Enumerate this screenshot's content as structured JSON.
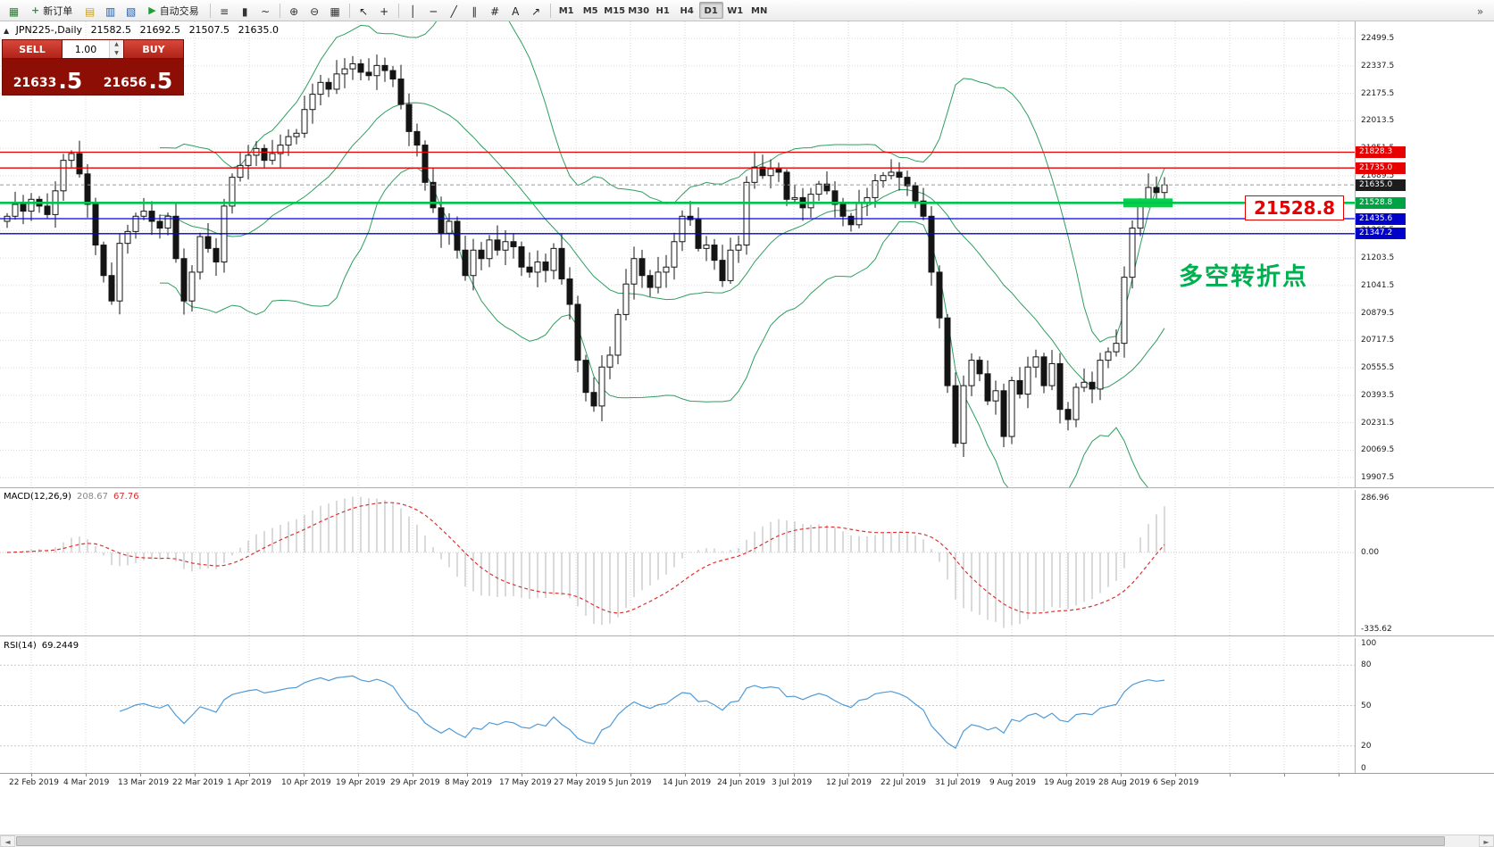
{
  "toolbar": {
    "active_timeframe": "D1",
    "items": [
      {
        "kind": "icon",
        "name": "new-chart-icon",
        "glyph": "▦",
        "color": "#2e7d32"
      },
      {
        "kind": "label-button",
        "name": "new-order-button",
        "glyph": "+",
        "glyph_color": "#1f9d3a",
        "label": "新订单"
      },
      {
        "kind": "icon",
        "name": "profiles-icon",
        "glyph": "▤",
        "color": "#c9a227"
      },
      {
        "kind": "icon",
        "name": "market-watch-icon",
        "glyph": "▥",
        "color": "#1e5aa8"
      },
      {
        "kind": "icon",
        "name": "data-window-icon",
        "glyph": "▧",
        "color": "#1e5aa8"
      },
      {
        "kind": "label-button",
        "name": "auto-trading-button",
        "glyph": "▶",
        "glyph_color": "#1f9d3a",
        "label": "自动交易"
      },
      {
        "kind": "sep"
      },
      {
        "kind": "icon",
        "name": "bar-chart-icon",
        "glyph": "≡",
        "color": "#333333"
      },
      {
        "kind": "icon",
        "name": "candlestick-icon",
        "glyph": "▮",
        "color": "#333333"
      },
      {
        "kind": "icon",
        "name": "line-chart-icon",
        "glyph": "~",
        "color": "#333333"
      },
      {
        "kind": "sep"
      },
      {
        "kind": "icon",
        "name": "zoom-in-icon",
        "glyph": "⊕",
        "color": "#333333"
      },
      {
        "kind": "icon",
        "name": "zoom-out-icon",
        "glyph": "⊖",
        "color": "#333333"
      },
      {
        "kind": "icon",
        "name": "tile-windows-icon",
        "glyph": "▦",
        "color": "#333333"
      },
      {
        "kind": "sep"
      },
      {
        "kind": "icon",
        "name": "cursor-icon",
        "glyph": "↖",
        "color": "#222222"
      },
      {
        "kind": "icon",
        "name": "crosshair-icon",
        "glyph": "+",
        "color": "#222222"
      },
      {
        "kind": "sep"
      },
      {
        "kind": "icon",
        "name": "vertical-line-icon",
        "glyph": "│",
        "color": "#222222"
      },
      {
        "kind": "icon",
        "name": "horizontal-line-icon",
        "glyph": "─",
        "color": "#222222"
      },
      {
        "kind": "icon",
        "name": "trendline-icon",
        "glyph": "╱",
        "color": "#222222"
      },
      {
        "kind": "icon",
        "name": "channel-icon",
        "glyph": "∥",
        "color": "#222222"
      },
      {
        "kind": "icon",
        "name": "fibonacci-icon",
        "glyph": "#",
        "color": "#222222"
      },
      {
        "kind": "icon",
        "name": "text-icon",
        "glyph": "A",
        "color": "#222222"
      },
      {
        "kind": "icon",
        "name": "arrows-icon",
        "glyph": "↗",
        "color": "#222222"
      },
      {
        "kind": "sep"
      },
      {
        "kind": "tf",
        "label": "M1"
      },
      {
        "kind": "tf",
        "label": "M5"
      },
      {
        "kind": "tf",
        "label": "M15"
      },
      {
        "kind": "tf",
        "label": "M30"
      },
      {
        "kind": "tf",
        "label": "H1"
      },
      {
        "kind": "tf",
        "label": "H4"
      },
      {
        "kind": "tf",
        "label": "D1"
      },
      {
        "kind": "tf",
        "label": "W1"
      },
      {
        "kind": "tf",
        "label": "MN"
      },
      {
        "kind": "icon",
        "name": "toolbar-overflow-icon",
        "glyph": "»",
        "color": "#555555",
        "right": true
      }
    ]
  },
  "trade_panel": {
    "sell_label": "SELL",
    "buy_label": "BUY",
    "volume": "1.00",
    "sell_price_base": "21633",
    "sell_price_pip": ".5",
    "buy_price_base": "21656",
    "buy_price_pip": ".5"
  },
  "chart": {
    "panel_toggle_glyph": "▲",
    "symbol": "JPN225-,Daily",
    "open": "21582.5",
    "high": "21692.5",
    "low": "21507.5",
    "close": "21635.0",
    "annotation_price": "21528.8",
    "annotation_note": "多空转折点",
    "axis": {
      "base": 19907.5,
      "step": 162.0,
      "count": 17
    },
    "levels": [
      {
        "price": 21828.3,
        "label": "21828.3",
        "line": "#e60000",
        "badge": "#e60000",
        "style": "solid",
        "width": 1.3
      },
      {
        "price": 21735.0,
        "label": "21735.0",
        "line": "#e60000",
        "badge": "#e60000",
        "style": "solid",
        "width": 1.3
      },
      {
        "price": 21635.0,
        "label": "21635.0",
        "line": "#9a9a9a",
        "badge": "#1c1c1c",
        "style": "dashed",
        "width": 1
      },
      {
        "price": 21528.8,
        "label": "21528.8",
        "line": "#00c44e",
        "badge": "#00a344",
        "style": "solid",
        "width": 2.6
      },
      {
        "price": 21435.6,
        "label": "21435.6",
        "line": "#0000e0",
        "badge": "#0000c8",
        "style": "solid",
        "width": 1.3
      },
      {
        "price": 21347.2,
        "label": "21347.2",
        "line": "#0000e0",
        "badge": "#0000c8",
        "style": "solid",
        "width": 1.3
      }
    ],
    "dates": [
      "22 Feb 2019",
      "4 Mar 2019",
      "13 Mar 2019",
      "22 Mar 2019",
      "1 Apr 2019",
      "10 Apr 2019",
      "19 Apr 2019",
      "29 Apr 2019",
      "8 May 2019",
      "17 May 2019",
      "27 May 2019",
      "5 Jun 2019",
      "14 Jun 2019",
      "24 Jun 2019",
      "3 Jul 2019",
      "12 Jul 2019",
      "22 Jul 2019",
      "31 Jul 2019",
      "9 Aug 2019",
      "19 Aug 2019",
      "28 Aug 2019",
      "6 Sep 2019"
    ],
    "closes": [
      21450,
      21520,
      21480,
      21550,
      21510,
      21460,
      21600,
      21780,
      21820,
      21700,
      21520,
      21280,
      21100,
      20950,
      21290,
      21360,
      21450,
      21480,
      21420,
      21380,
      21450,
      21200,
      20950,
      21120,
      21330,
      21260,
      21180,
      21510,
      21680,
      21750,
      21810,
      21850,
      21780,
      21820,
      21870,
      21920,
      21940,
      22080,
      22170,
      22240,
      22200,
      22290,
      22320,
      22350,
      22300,
      22280,
      22340,
      22310,
      22260,
      22110,
      21950,
      21870,
      21650,
      21500,
      21350,
      21420,
      21250,
      21100,
      21250,
      21200,
      21310,
      21250,
      21300,
      21270,
      21150,
      21120,
      21180,
      21130,
      21260,
      21080,
      20930,
      20600,
      20410,
      20330,
      20560,
      20630,
      20870,
      21050,
      21200,
      21100,
      21030,
      21120,
      21150,
      21300,
      21450,
      21430,
      21260,
      21280,
      21190,
      21070,
      21250,
      21280,
      21650,
      21740,
      21690,
      21730,
      21710,
      21550,
      21560,
      21500,
      21580,
      21640,
      21600,
      21520,
      21450,
      21400,
      21530,
      21560,
      21660,
      21690,
      21710,
      21680,
      21630,
      21540,
      21450,
      21120,
      20850,
      20450,
      20110,
      20450,
      20600,
      20520,
      20360,
      20420,
      20150,
      20480,
      20400,
      20560,
      20620,
      20450,
      20580,
      20310,
      20250,
      20440,
      20470,
      20430,
      20600,
      20650,
      20700,
      21090,
      21380,
      21530,
      21620,
      21590,
      21635
    ]
  },
  "macd": {
    "name": "MACD(12,26,9)",
    "main_value": "208.67",
    "signal_value": "67.76",
    "axis_labels": [
      "286.96",
      "0.00",
      "-335.62"
    ]
  },
  "rsi": {
    "name": "RSI(14)",
    "value": "69.2449",
    "axis_labels": [
      "100",
      "80",
      "50",
      "20",
      "0"
    ],
    "levels": [
      80,
      50,
      20
    ]
  },
  "scrollbar": {
    "left_arrow": "◄",
    "right_arrow": "►"
  },
  "colors": {
    "bull": "#ffffff",
    "bear": "#141414",
    "outline": "#141414",
    "band": "#2f9e5f",
    "grid": "#dadada",
    "macd_hist": "#b6b6b6",
    "macd_signal": "#e03131",
    "rsi_line": "#4f9bd8",
    "zone": "#00d24a"
  }
}
